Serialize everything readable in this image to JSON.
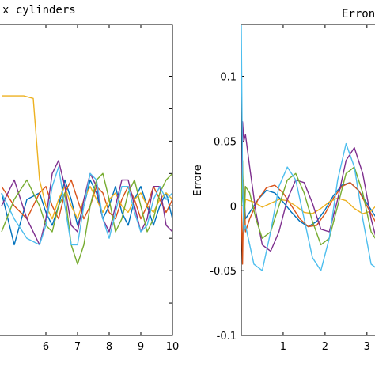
{
  "chart_data": [
    {
      "type": "line",
      "title": "x cylinders",
      "xlabel": "",
      "ylabel": "",
      "xlim": [
        4.5,
        10
      ],
      "ylim": [
        -0.1,
        0.14
      ],
      "xticks": [
        6,
        7,
        8,
        9,
        10
      ],
      "xtick_labels": [
        "6",
        "7",
        "8",
        "9",
        "10"
      ],
      "grid": false,
      "series": [
        {
          "color": "#0072bd",
          "x": [
            4.6,
            5.0,
            5.4,
            5.8,
            6.0,
            6.2,
            6.4,
            6.6,
            6.8,
            7.0,
            7.2,
            7.4,
            7.6,
            7.8,
            8.0,
            8.2,
            8.4,
            8.6,
            8.8,
            9.0,
            9.2,
            9.4,
            9.6,
            9.8,
            10.0
          ],
          "y": [
            0.01,
            -0.03,
            0.005,
            0.01,
            -0.005,
            -0.015,
            0.0,
            0.02,
            0.005,
            -0.015,
            0.0,
            0.02,
            0.01,
            -0.01,
            0.0,
            0.015,
            -0.005,
            -0.015,
            0.005,
            0.015,
            0.0,
            -0.015,
            0.0,
            0.01,
            -0.01
          ]
        },
        {
          "color": "#d95319",
          "x": [
            4.6,
            5.0,
            5.4,
            5.8,
            6.0,
            6.2,
            6.4,
            6.6,
            6.8,
            7.0,
            7.2,
            7.4,
            7.6,
            7.8,
            8.0,
            8.2,
            8.4,
            8.6,
            8.8,
            9.0,
            9.2,
            9.4,
            9.6,
            9.8,
            10.0
          ],
          "y": [
            0.015,
            0.0,
            -0.01,
            0.01,
            0.015,
            0.0,
            -0.01,
            0.01,
            0.02,
            0.005,
            -0.01,
            0.0,
            0.015,
            0.01,
            -0.005,
            -0.01,
            0.005,
            0.015,
            0.005,
            -0.01,
            0.0,
            0.015,
            0.005,
            -0.005,
            0.005
          ]
        },
        {
          "color": "#edb120",
          "x": [
            4.6,
            5.0,
            5.3,
            5.6,
            5.8,
            6.0,
            6.2,
            6.4,
            6.6,
            6.8,
            7.0,
            7.2,
            7.4,
            7.6,
            7.8,
            8.0,
            8.2,
            8.4,
            8.6,
            8.8,
            9.0,
            9.2,
            9.4,
            9.6,
            9.8,
            10.0
          ],
          "y": [
            0.085,
            0.085,
            0.085,
            0.083,
            0.02,
            0.0,
            -0.01,
            0.005,
            0.015,
            0.0,
            -0.01,
            0.005,
            0.015,
            0.005,
            -0.005,
            0.005,
            0.01,
            0.0,
            -0.005,
            0.005,
            0.01,
            0.0,
            -0.005,
            0.005,
            0.01,
            0.005
          ]
        },
        {
          "color": "#7e2f8e",
          "x": [
            4.6,
            5.0,
            5.4,
            5.8,
            6.0,
            6.2,
            6.4,
            6.6,
            6.8,
            7.0,
            7.2,
            7.4,
            7.6,
            7.8,
            8.0,
            8.2,
            8.4,
            8.6,
            8.8,
            9.0,
            9.2,
            9.4,
            9.6,
            9.8,
            10.0
          ],
          "y": [
            0.0,
            0.02,
            -0.01,
            -0.03,
            -0.01,
            0.025,
            0.035,
            0.015,
            -0.015,
            -0.02,
            0.005,
            0.025,
            0.015,
            -0.01,
            -0.02,
            0.0,
            0.02,
            0.02,
            0.0,
            -0.02,
            -0.01,
            0.015,
            0.015,
            -0.015,
            -0.02
          ]
        },
        {
          "color": "#77ac30",
          "x": [
            4.6,
            5.0,
            5.4,
            5.8,
            6.0,
            6.2,
            6.4,
            6.6,
            6.8,
            7.0,
            7.2,
            7.4,
            7.6,
            7.8,
            8.0,
            8.2,
            8.4,
            8.6,
            8.8,
            9.0,
            9.2,
            9.4,
            9.6,
            9.8,
            10.0
          ],
          "y": [
            -0.02,
            0.005,
            0.02,
            0.0,
            -0.015,
            -0.02,
            0.0,
            0.01,
            -0.03,
            -0.045,
            -0.03,
            0.0,
            0.02,
            0.025,
            0.005,
            -0.02,
            -0.01,
            0.01,
            0.02,
            0.0,
            -0.02,
            -0.01,
            0.01,
            0.02,
            0.025
          ]
        },
        {
          "color": "#4dbeee",
          "x": [
            4.6,
            5.0,
            5.4,
            5.8,
            6.0,
            6.2,
            6.4,
            6.6,
            6.8,
            7.0,
            7.2,
            7.4,
            7.6,
            7.8,
            8.0,
            8.2,
            8.4,
            8.6,
            8.8,
            9.0,
            9.2,
            9.4,
            9.6,
            9.8,
            10.0
          ],
          "y": [
            0.01,
            -0.01,
            -0.025,
            -0.03,
            -0.015,
            0.015,
            0.03,
            0.0,
            -0.03,
            -0.03,
            0.0,
            0.025,
            0.02,
            -0.01,
            -0.025,
            -0.005,
            0.015,
            0.015,
            -0.005,
            -0.02,
            -0.015,
            0.005,
            0.015,
            0.005,
            0.01
          ]
        }
      ]
    },
    {
      "type": "line",
      "title": "Erron",
      "xlabel": "",
      "ylabel": "Errore",
      "xlim": [
        0,
        3.4
      ],
      "ylim": [
        -0.1,
        0.14
      ],
      "yticks": [
        -0.1,
        -0.05,
        0,
        0.05,
        0.1
      ],
      "ytick_labels": [
        "-0.1",
        "-0.05",
        "0",
        "0.05",
        "0.1"
      ],
      "xticks": [
        1,
        2,
        3
      ],
      "xtick_labels": [
        "1",
        "2",
        "3"
      ],
      "grid": false,
      "series": [
        {
          "color": "#0072bd",
          "x": [
            0.0,
            0.05,
            0.1,
            0.2,
            0.4,
            0.6,
            0.8,
            1.0,
            1.2,
            1.4,
            1.6,
            1.8,
            2.0,
            2.2,
            2.4,
            2.6,
            2.8,
            3.0,
            3.2,
            3.4
          ],
          "y": [
            0.0,
            0.02,
            -0.01,
            -0.005,
            0.005,
            0.012,
            0.01,
            0.003,
            -0.005,
            -0.012,
            -0.016,
            -0.012,
            -0.003,
            0.008,
            0.016,
            0.018,
            0.012,
            0.002,
            -0.008,
            -0.014
          ]
        },
        {
          "color": "#d95319",
          "x": [
            0.0,
            0.03,
            0.06,
            0.1,
            0.2,
            0.4,
            0.6,
            0.8,
            1.0,
            1.2,
            1.4,
            1.6,
            1.8,
            2.0,
            2.2,
            2.4,
            2.6,
            2.8,
            3.0,
            3.2,
            3.4
          ],
          "y": [
            0.0,
            -0.045,
            0.02,
            -0.02,
            -0.01,
            0.005,
            0.014,
            0.016,
            0.01,
            0.0,
            -0.01,
            -0.016,
            -0.015,
            -0.006,
            0.006,
            0.015,
            0.018,
            0.012,
            0.0,
            -0.012,
            -0.016
          ]
        },
        {
          "color": "#edb120",
          "x": [
            0.0,
            0.03,
            0.06,
            0.1,
            0.3,
            0.5,
            0.7,
            0.9,
            1.1,
            1.3,
            1.5,
            1.7,
            1.9,
            2.1,
            2.3,
            2.5,
            2.7,
            2.9,
            3.1,
            3.3,
            3.4
          ],
          "y": [
            0.0,
            0.03,
            -0.01,
            0.005,
            0.003,
            -0.001,
            0.002,
            0.005,
            0.004,
            0.0,
            -0.005,
            -0.006,
            -0.002,
            0.003,
            0.006,
            0.004,
            -0.002,
            -0.006,
            -0.004,
            0.003,
            0.005
          ]
        },
        {
          "color": "#7e2f8e",
          "x": [
            0.0,
            0.03,
            0.06,
            0.1,
            0.2,
            0.35,
            0.5,
            0.7,
            0.9,
            1.1,
            1.3,
            1.5,
            1.7,
            1.9,
            2.1,
            2.3,
            2.5,
            2.7,
            2.9,
            3.1,
            3.3,
            3.4
          ],
          "y": [
            0.0,
            0.065,
            0.05,
            0.055,
            0.03,
            -0.005,
            -0.03,
            -0.035,
            -0.02,
            0.005,
            0.02,
            0.018,
            0.002,
            -0.018,
            -0.02,
            0.005,
            0.035,
            0.045,
            0.025,
            -0.01,
            -0.035,
            -0.04
          ]
        },
        {
          "color": "#77ac30",
          "x": [
            0.0,
            0.03,
            0.06,
            0.1,
            0.2,
            0.35,
            0.5,
            0.7,
            0.9,
            1.1,
            1.3,
            1.5,
            1.7,
            1.9,
            2.1,
            2.3,
            2.5,
            2.7,
            2.9,
            3.1,
            3.3,
            3.4
          ],
          "y": [
            0.0,
            0.035,
            -0.02,
            0.015,
            0.01,
            -0.01,
            -0.025,
            -0.02,
            0.0,
            0.02,
            0.025,
            0.01,
            -0.012,
            -0.03,
            -0.025,
            0.0,
            0.025,
            0.03,
            0.01,
            -0.02,
            -0.03,
            -0.02
          ]
        },
        {
          "color": "#4dbeee",
          "x": [
            0.0,
            0.03,
            0.06,
            0.1,
            0.3,
            0.5,
            0.7,
            0.9,
            1.1,
            1.3,
            1.5,
            1.7,
            1.9,
            2.1,
            2.3,
            2.5,
            2.7,
            2.9,
            3.1,
            3.3,
            3.4
          ],
          "y": [
            0.14,
            0.02,
            -0.02,
            -0.015,
            -0.045,
            -0.05,
            -0.02,
            0.015,
            0.03,
            0.02,
            -0.01,
            -0.04,
            -0.05,
            -0.025,
            0.02,
            0.048,
            0.03,
            -0.01,
            -0.045,
            -0.05,
            -0.035
          ]
        }
      ]
    }
  ]
}
